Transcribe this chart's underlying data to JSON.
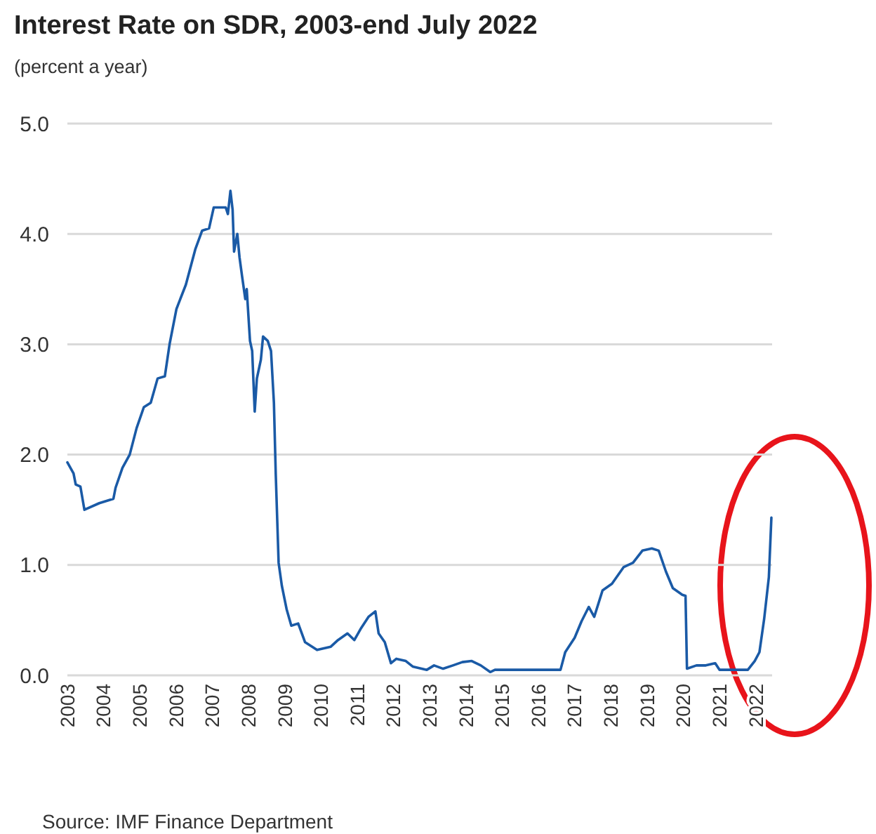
{
  "chart_data": {
    "type": "line",
    "title": "Interest Rate on SDR, 2003-end July 2022",
    "subtitle": "(percent a year)",
    "annotations": [
      "Source: IMF Finance Department"
    ],
    "xlim": [
      2003,
      2022.45
    ],
    "xticks": [
      2003,
      2004,
      2005,
      2006,
      2007,
      2008,
      2009,
      2010,
      2011,
      2012,
      2013,
      2014,
      2015,
      2016,
      2017,
      2018,
      2019,
      2020,
      2021,
      2022
    ],
    "ylim": [
      0,
      5
    ],
    "yticks": [
      {
        "value": 0,
        "label": "0.0"
      },
      {
        "value": 1,
        "label": "1.0"
      },
      {
        "value": 2,
        "label": "2.0"
      },
      {
        "value": 3,
        "label": "3.0"
      },
      {
        "value": 4,
        "label": "4.0"
      },
      {
        "value": 5,
        "label": "5.0"
      }
    ],
    "grid": "y",
    "marker": "none",
    "line_style": "solid",
    "series": [
      {
        "color": "#1a5aa6",
        "x": [
          2003.0,
          2003.17,
          2003.23,
          2003.36,
          2003.47,
          2003.88,
          2004.27,
          2004.33,
          2004.52,
          2004.72,
          2004.91,
          2005.11,
          2005.3,
          2005.49,
          2005.69,
          2005.82,
          2006.01,
          2006.27,
          2006.53,
          2006.72,
          2006.91,
          2007.04,
          2007.37,
          2007.43,
          2007.5,
          2007.56,
          2007.6,
          2007.69,
          2007.75,
          2007.82,
          2007.91,
          2007.95,
          2008.04,
          2008.1,
          2008.17,
          2008.23,
          2008.34,
          2008.4,
          2008.53,
          2008.62,
          2008.7,
          2008.75,
          2008.83,
          2008.92,
          2009.05,
          2009.18,
          2009.37,
          2009.56,
          2009.89,
          2010.27,
          2010.47,
          2010.73,
          2010.92,
          2011.11,
          2011.31,
          2011.5,
          2011.59,
          2011.76,
          2011.93,
          2012.08,
          2012.34,
          2012.53,
          2012.92,
          2013.12,
          2013.37,
          2013.64,
          2013.9,
          2014.16,
          2014.41,
          2014.67,
          2014.8,
          2016.61,
          2016.74,
          2017.0,
          2017.19,
          2017.39,
          2017.54,
          2017.77,
          2018.03,
          2018.35,
          2018.61,
          2018.87,
          2019.13,
          2019.32,
          2019.52,
          2019.71,
          2019.97,
          2020.06,
          2020.1,
          2020.36,
          2020.62,
          2020.88,
          2021.0,
          2021.78,
          2021.97,
          2022.1,
          2022.23,
          2022.36,
          2022.43
        ],
        "values": [
          1.93,
          1.83,
          1.73,
          1.71,
          1.5,
          1.56,
          1.6,
          1.7,
          1.88,
          2.0,
          2.24,
          2.43,
          2.47,
          2.69,
          2.71,
          3.0,
          3.32,
          3.54,
          3.86,
          4.03,
          4.05,
          4.24,
          4.24,
          4.18,
          4.39,
          4.22,
          3.84,
          4.0,
          3.79,
          3.62,
          3.41,
          3.5,
          3.03,
          2.94,
          2.39,
          2.69,
          2.86,
          3.07,
          3.03,
          2.94,
          2.47,
          1.83,
          1.02,
          0.81,
          0.6,
          0.45,
          0.47,
          0.3,
          0.23,
          0.26,
          0.32,
          0.38,
          0.32,
          0.43,
          0.53,
          0.58,
          0.38,
          0.3,
          0.11,
          0.15,
          0.13,
          0.08,
          0.05,
          0.09,
          0.06,
          0.09,
          0.12,
          0.13,
          0.09,
          0.03,
          0.05,
          0.05,
          0.21,
          0.34,
          0.49,
          0.62,
          0.53,
          0.77,
          0.83,
          0.98,
          1.02,
          1.13,
          1.15,
          1.13,
          0.94,
          0.79,
          0.73,
          0.72,
          0.06,
          0.09,
          0.09,
          0.11,
          0.05,
          0.05,
          0.13,
          0.21,
          0.51,
          0.89,
          1.43
        ]
      }
    ]
  }
}
